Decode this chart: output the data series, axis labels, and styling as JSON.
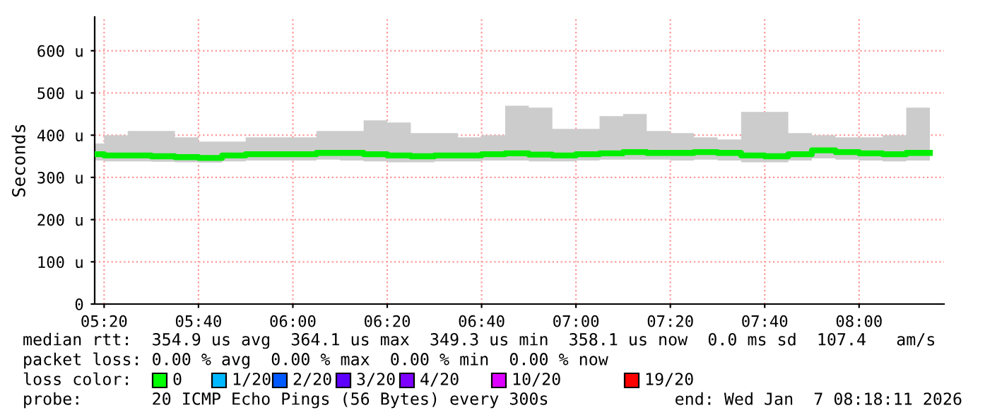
{
  "chart_data": {
    "type": "step",
    "ylabel": "Seconds",
    "x": [
      "2026-01-07T05:18",
      "2026-01-07T05:20",
      "2026-01-07T05:25",
      "2026-01-07T05:30",
      "2026-01-07T05:35",
      "2026-01-07T05:40",
      "2026-01-07T05:45",
      "2026-01-07T05:50",
      "2026-01-07T05:55",
      "2026-01-07T06:00",
      "2026-01-07T06:05",
      "2026-01-07T06:10",
      "2026-01-07T06:15",
      "2026-01-07T06:20",
      "2026-01-07T06:25",
      "2026-01-07T06:30",
      "2026-01-07T06:35",
      "2026-01-07T06:40",
      "2026-01-07T06:45",
      "2026-01-07T06:50",
      "2026-01-07T06:55",
      "2026-01-07T07:00",
      "2026-01-07T07:05",
      "2026-01-07T07:10",
      "2026-01-07T07:15",
      "2026-01-07T07:20",
      "2026-01-07T07:25",
      "2026-01-07T07:30",
      "2026-01-07T07:35",
      "2026-01-07T07:40",
      "2026-01-07T07:45",
      "2026-01-07T07:50",
      "2026-01-07T07:55",
      "2026-01-07T08:00",
      "2026-01-07T08:05",
      "2026-01-07T08:10",
      "2026-01-07T08:15"
    ],
    "series": [
      {
        "color": "#00ee00",
        "values": [
          355,
          352,
          352,
          350,
          348,
          346,
          352,
          355,
          355,
          355,
          358,
          358,
          355,
          352,
          350,
          352,
          352,
          355,
          357,
          354,
          352,
          355,
          357,
          360,
          358,
          358,
          360,
          358,
          352,
          350,
          355,
          364,
          360,
          357,
          355,
          358,
          358
        ],
        "lower": [
          340,
          338,
          338,
          337,
          336,
          335,
          338,
          340,
          340,
          340,
          342,
          340,
          338,
          336,
          336,
          338,
          338,
          340,
          340,
          338,
          338,
          340,
          342,
          342,
          342,
          340,
          342,
          340,
          336,
          336,
          340,
          345,
          342,
          340,
          338,
          340,
          340
        ],
        "upper": [
          380,
          400,
          410,
          410,
          395,
          385,
          385,
          395,
          395,
          395,
          410,
          410,
          435,
          430,
          405,
          405,
          395,
          400,
          470,
          465,
          415,
          415,
          445,
          450,
          410,
          405,
          395,
          390,
          455,
          455,
          405,
          400,
          395,
          395,
          400,
          465,
          465
        ]
      }
    ],
    "xlim": [
      "2026-01-07T05:18",
      "2026-01-07T08:18"
    ],
    "xticks": [
      {
        "value": "2026-01-07T05:20",
        "label": "05:20"
      },
      {
        "value": "2026-01-07T05:40",
        "label": "05:40"
      },
      {
        "value": "2026-01-07T06:00",
        "label": "06:00"
      },
      {
        "value": "2026-01-07T06:20",
        "label": "06:20"
      },
      {
        "value": "2026-01-07T06:40",
        "label": "06:40"
      },
      {
        "value": "2026-01-07T07:00",
        "label": "07:00"
      },
      {
        "value": "2026-01-07T07:20",
        "label": "07:20"
      },
      {
        "value": "2026-01-07T07:40",
        "label": "07:40"
      },
      {
        "value": "2026-01-07T08:00",
        "label": "08:00"
      }
    ],
    "ylim": [
      0,
      680
    ],
    "yticks": [
      0,
      {
        "value": 100,
        "label": "100 u"
      },
      {
        "value": 200,
        "label": "200 u"
      },
      {
        "value": 300,
        "label": "300 u"
      },
      {
        "value": 400,
        "label": "400 u"
      },
      {
        "value": 500,
        "label": "500 u"
      },
      {
        "value": 600,
        "label": "600 u"
      }
    ],
    "grid": true,
    "annotations": [
      "median rtt:  354.9 us avg  364.1 us max  349.3 us min  358.1 us now  0.0 ms sd  107.4   am/s",
      "packet loss: 0.00 % avg  0.00 % max  0.00 % min  0.00 % now",
      "loss color:",
      "0",
      "1/20",
      "2/20",
      "3/20",
      "4/20",
      "10/20",
      "19/20",
      "probe:       20 ICMP Echo Pings (56 Bytes) every 300s",
      "end: Wed Jan  7 08:18:11 2026"
    ]
  }
}
